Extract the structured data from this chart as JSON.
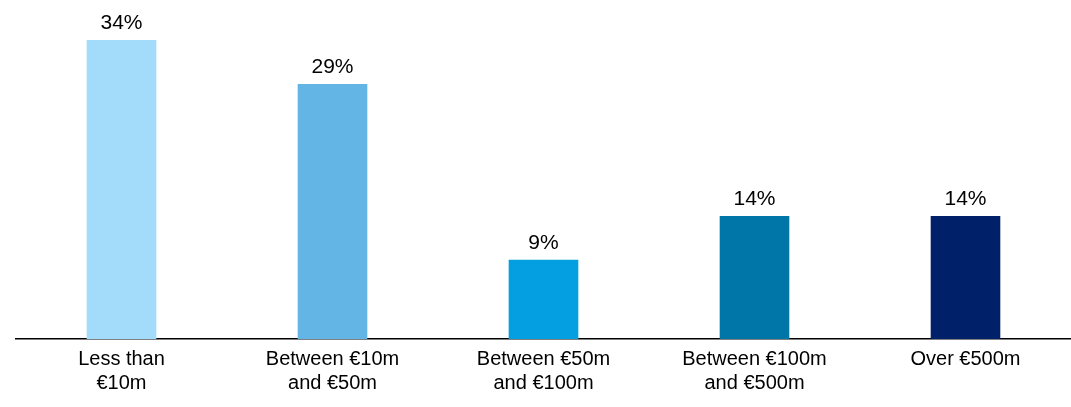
{
  "chart_data": {
    "type": "bar",
    "categories": [
      "Less than €10m",
      "Between €10m and €50m",
      "Between €50m and €100m",
      "Between €100m and €500m",
      "Over €500m"
    ],
    "values": [
      34,
      29,
      9,
      14,
      14
    ],
    "colors": [
      "#a3dcfb",
      "#63b5e5",
      "#039fe0",
      "#0076a8",
      "#00216a"
    ],
    "value_labels": [
      "34%",
      "29%",
      "9%",
      "14%",
      "14%"
    ],
    "grid": false,
    "legend": false
  }
}
